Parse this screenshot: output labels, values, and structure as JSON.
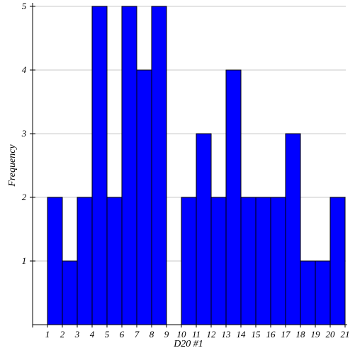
{
  "chart_data": {
    "type": "bar",
    "title": "",
    "xlabel": "D20 #1",
    "ylabel": "Frequency",
    "xlim": [
      1,
      21
    ],
    "ylim": [
      0,
      5
    ],
    "x_ticks": [
      "1",
      "2",
      "3",
      "4",
      "5",
      "6",
      "7",
      "8",
      "9",
      "10",
      "11",
      "12",
      "13",
      "14",
      "15",
      "16",
      "17",
      "18",
      "19",
      "20",
      "21"
    ],
    "y_ticks": [
      "1",
      "2",
      "3",
      "4",
      "5"
    ],
    "bins": [
      {
        "from": 1,
        "to": 2,
        "value": 2
      },
      {
        "from": 2,
        "to": 3,
        "value": 1
      },
      {
        "from": 3,
        "to": 4,
        "value": 2
      },
      {
        "from": 4,
        "to": 5,
        "value": 5
      },
      {
        "from": 5,
        "to": 6,
        "value": 2
      },
      {
        "from": 6,
        "to": 7,
        "value": 5
      },
      {
        "from": 7,
        "to": 8,
        "value": 4
      },
      {
        "from": 8,
        "to": 9,
        "value": 5
      },
      {
        "from": 9,
        "to": 10,
        "value": 0
      },
      {
        "from": 10,
        "to": 11,
        "value": 2
      },
      {
        "from": 11,
        "to": 12,
        "value": 3
      },
      {
        "from": 12,
        "to": 13,
        "value": 2
      },
      {
        "from": 13,
        "to": 14,
        "value": 4
      },
      {
        "from": 14,
        "to": 15,
        "value": 2
      },
      {
        "from": 15,
        "to": 16,
        "value": 2
      },
      {
        "from": 16,
        "to": 17,
        "value": 2
      },
      {
        "from": 17,
        "to": 18,
        "value": 3
      },
      {
        "from": 18,
        "to": 19,
        "value": 1
      },
      {
        "from": 19,
        "to": 20,
        "value": 1
      },
      {
        "from": 20,
        "to": 21,
        "value": 2
      }
    ],
    "grid": true,
    "colors": {
      "bar_fill": "#0000ff",
      "bar_stroke": "#000000",
      "grid": "#c8c8c8",
      "axis": "#000000"
    }
  }
}
